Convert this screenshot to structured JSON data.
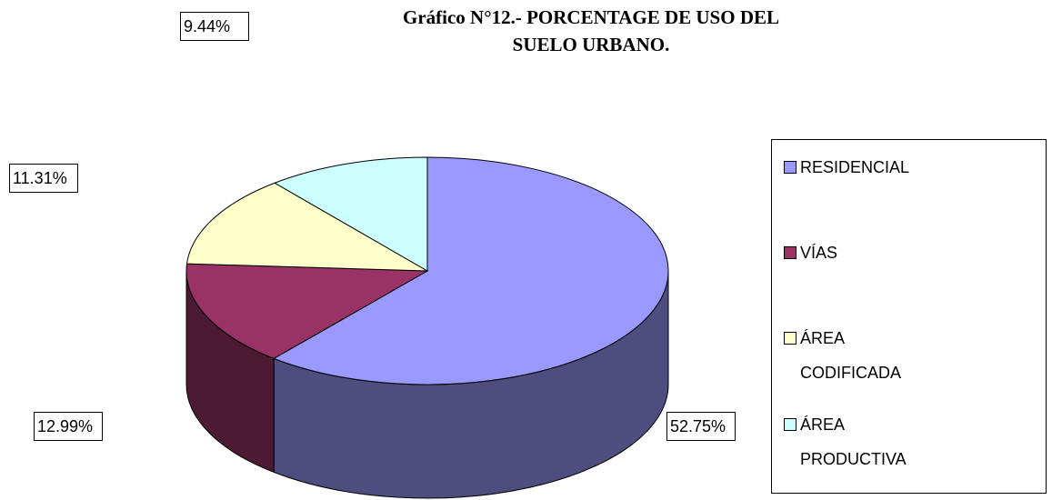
{
  "chart_data": {
    "type": "pie",
    "title": "Gráfico N°12.-  PORCENTAGE DE USO  DEL SUELO URBANO.",
    "categories": [
      "RESIDENCIAL",
      "VÍAS",
      "ÁREA CODIFICADA",
      "ÁREA PRODUCTIVA"
    ],
    "values": [
      52.75,
      12.99,
      11.31,
      9.44
    ],
    "value_labels": [
      "52.75%",
      "12.99%",
      "11.31%",
      "9.44%"
    ],
    "colors": [
      "#9999ff",
      "#993366",
      "#ffffcc",
      "#ccffff"
    ],
    "side_colors": [
      "#4d4d80",
      "#4d1a33",
      "#808066",
      "#668080"
    ],
    "legend": "right"
  }
}
